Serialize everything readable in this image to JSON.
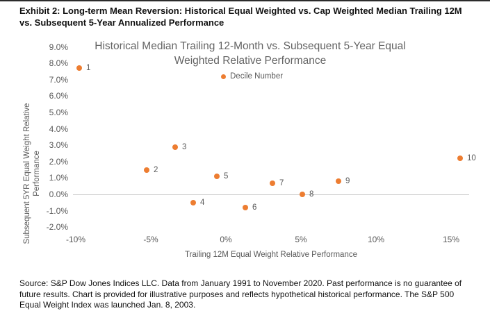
{
  "exhibit_title": "Exhibit 2: Long-term Mean Reversion: Historical Equal Weighted vs. Cap Weighted Median Trailing 12M vs. Subsequent 5-Year Annualized Performance",
  "source_note": "Source: S&P Dow Jones Indices LLC. Data from January 1991 to November 2020. Past performance is no guarantee of future results. Chart is provided for illustrative purposes and reflects hypothetical historical performance. The S&P 500 Equal Weight Index was launched Jan. 8, 2003.",
  "colors": {
    "marker_orange": "#ED7D31",
    "axis_text_gray": "#595959",
    "title_gray": "#646464",
    "zero_line_gray": "#CCCCCC"
  },
  "chart_data": {
    "type": "scatter",
    "title": "Historical Median Trailing 12-Month vs. Subsequent 5-Year Equal Weighted Relative Performance",
    "xlabel": "Trailing 12M Equal Weight Relative Performance",
    "ylabel": "Subsequent 5YR Equal Weight Relative Performance",
    "legend": [
      "Decile Number"
    ],
    "legend_position": "inside-top-right",
    "grid": false,
    "xlim": [
      -10.2,
      16.2
    ],
    "ylim": [
      -2.2,
      9.24
    ],
    "x_tick_values": [
      -10,
      -5,
      0,
      5,
      10,
      15
    ],
    "x_tick_labels": [
      "-10%",
      "-5%",
      "0%",
      "5%",
      "10%",
      "15%"
    ],
    "y_tick_values": [
      9,
      8,
      7,
      6,
      5,
      4,
      3,
      2,
      1,
      0,
      -1,
      -2
    ],
    "y_tick_labels": [
      "9.0%",
      "8.0%",
      "7.0%",
      "6.0%",
      "5.0%",
      "4.0%",
      "3.0%",
      "2.0%",
      "1.0%",
      "0.0%",
      "-1.0%",
      "-2.0%"
    ],
    "series": [
      {
        "name": "Decile Number",
        "points": [
          {
            "decile": "1",
            "x": -9.8,
            "y": 7.7
          },
          {
            "decile": "2",
            "x": -5.3,
            "y": 1.5
          },
          {
            "decile": "3",
            "x": -3.4,
            "y": 2.9
          },
          {
            "decile": "4",
            "x": -2.2,
            "y": -0.5
          },
          {
            "decile": "5",
            "x": -0.6,
            "y": 1.1
          },
          {
            "decile": "6",
            "x": 1.3,
            "y": -0.8
          },
          {
            "decile": "7",
            "x": 3.1,
            "y": 0.7
          },
          {
            "decile": "8",
            "x": 5.1,
            "y": 0.0
          },
          {
            "decile": "9",
            "x": 7.5,
            "y": 0.8
          },
          {
            "decile": "10",
            "x": 15.6,
            "y": 2.2
          }
        ]
      }
    ]
  }
}
